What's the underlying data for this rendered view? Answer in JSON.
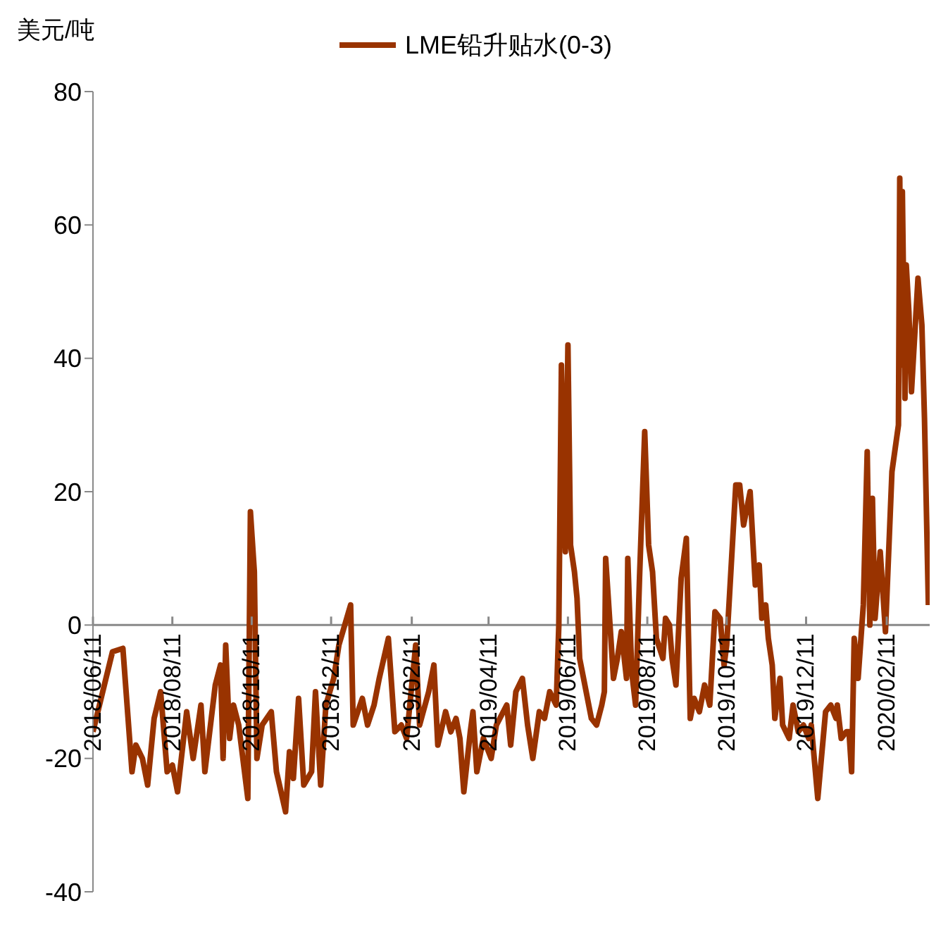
{
  "chart_data": {
    "type": "line",
    "ylabel": "美元/吨",
    "legend": "top",
    "grid": false,
    "marker": "none",
    "line_style": "solid",
    "xlim": [
      "2018-06-11",
      "2020-03-15"
    ],
    "ylim": [
      -40,
      80
    ],
    "yticks": [
      -40,
      -20,
      0,
      20,
      40,
      60,
      80
    ],
    "xticks": [
      {
        "value": "2018-06-11",
        "label": "2018/06/11"
      },
      {
        "value": "2018-08-11",
        "label": "2018/08/11"
      },
      {
        "value": "2018-10-11",
        "label": "2018/10/11"
      },
      {
        "value": "2018-12-11",
        "label": "2018/12/11"
      },
      {
        "value": "2019-02-11",
        "label": "2019/02/11"
      },
      {
        "value": "2019-04-11",
        "label": "2019/04/11"
      },
      {
        "value": "2019-06-11",
        "label": "2019/06/11"
      },
      {
        "value": "2019-08-11",
        "label": "2019/08/11"
      },
      {
        "value": "2019-10-11",
        "label": "2019/10/11"
      },
      {
        "value": "2019-12-11",
        "label": "2019/12/11"
      },
      {
        "value": "2020-02-11",
        "label": "2020/02/11"
      }
    ],
    "x": [
      "2018-06-11",
      "2018-06-21",
      "2018-06-26",
      "2018-07-04",
      "2018-07-11",
      "2018-07-14",
      "2018-07-19",
      "2018-07-23",
      "2018-07-28",
      "2018-08-02",
      "2018-08-07",
      "2018-08-11",
      "2018-08-15",
      "2018-08-22",
      "2018-08-27",
      "2018-09-02",
      "2018-09-05",
      "2018-09-13",
      "2018-09-17",
      "2018-09-19",
      "2018-09-21",
      "2018-09-24",
      "2018-09-27",
      "2018-10-01",
      "2018-10-08",
      "2018-10-10",
      "2018-10-13",
      "2018-10-15",
      "2018-10-19",
      "2018-10-26",
      "2018-10-30",
      "2018-11-06",
      "2018-11-09",
      "2018-11-12",
      "2018-11-16",
      "2018-11-20",
      "2018-11-26",
      "2018-11-29",
      "2018-12-03",
      "2018-12-07",
      "2018-12-13",
      "2018-12-17",
      "2018-12-26",
      "2018-12-28",
      "2019-01-04",
      "2019-01-08",
      "2019-01-13",
      "2019-01-17",
      "2019-01-24",
      "2019-01-29",
      "2019-02-03",
      "2019-02-07",
      "2019-02-14",
      "2019-02-17",
      "2019-02-24",
      "2019-02-28",
      "2019-03-03",
      "2019-03-09",
      "2019-03-13",
      "2019-03-17",
      "2019-03-20",
      "2019-03-23",
      "2019-03-28",
      "2019-03-30",
      "2019-04-02",
      "2019-04-07",
      "2019-04-13",
      "2019-04-17",
      "2019-04-25",
      "2019-04-28",
      "2019-05-02",
      "2019-05-07",
      "2019-05-11",
      "2019-05-15",
      "2019-05-20",
      "2019-05-24",
      "2019-05-28",
      "2019-06-02",
      "2019-06-04",
      "2019-06-06",
      "2019-06-09",
      "2019-06-11",
      "2019-06-13",
      "2019-06-16",
      "2019-06-18",
      "2019-06-20",
      "2019-06-23",
      "2019-06-29",
      "2019-07-03",
      "2019-07-07",
      "2019-07-09",
      "2019-07-10",
      "2019-07-16",
      "2019-07-19",
      "2019-07-22",
      "2019-07-26",
      "2019-07-27",
      "2019-07-30",
      "2019-08-02",
      "2019-08-05",
      "2019-08-09",
      "2019-08-12",
      "2019-08-15",
      "2019-08-18",
      "2019-08-23",
      "2019-08-25",
      "2019-08-28",
      "2019-08-30",
      "2019-09-02",
      "2019-09-06",
      "2019-09-10",
      "2019-09-13",
      "2019-09-16",
      "2019-09-20",
      "2019-09-24",
      "2019-09-28",
      "2019-10-02",
      "2019-10-06",
      "2019-10-09",
      "2019-10-11",
      "2019-10-18",
      "2019-10-21",
      "2019-10-24",
      "2019-10-29",
      "2019-11-02",
      "2019-11-05",
      "2019-11-07",
      "2019-11-10",
      "2019-11-12",
      "2019-11-15",
      "2019-11-17",
      "2019-11-21",
      "2019-11-23",
      "2019-11-28",
      "2019-12-01",
      "2019-12-05",
      "2019-12-09",
      "2019-12-13",
      "2019-12-15",
      "2019-12-20",
      "2019-12-26",
      "2019-12-30",
      "2020-01-03",
      "2020-01-04",
      "2020-01-07",
      "2020-01-11",
      "2020-01-13",
      "2020-01-15",
      "2020-01-17",
      "2020-01-20",
      "2020-01-24",
      "2020-01-27",
      "2020-01-29",
      "2020-01-31",
      "2020-02-02",
      "2020-02-06",
      "2020-02-10",
      "2020-02-15",
      "2020-02-20",
      "2020-02-21",
      "2020-02-22",
      "2020-02-23",
      "2020-02-25",
      "2020-02-26",
      "2020-02-28",
      "2020-03-01",
      "2020-03-06",
      "2020-03-09",
      "2020-03-11",
      "2020-03-14"
    ],
    "series": [
      {
        "name": "LME铅升贴水(0-3)",
        "color": "#993300",
        "values": [
          -16,
          -8,
          -4,
          -3.5,
          -22,
          -18,
          -20,
          -24,
          -14,
          -10,
          -22,
          -21,
          -25,
          -13,
          -20,
          -12,
          -22,
          -9,
          -6,
          -20,
          -3,
          -17,
          -12,
          -15,
          -26,
          17,
          8,
          -20,
          -15,
          -13,
          -22,
          -28,
          -19,
          -23,
          -11,
          -24,
          -22,
          -10,
          -24,
          -12,
          -8,
          -3,
          3,
          -15,
          -11,
          -15,
          -12,
          -8,
          -2,
          -16,
          -15,
          -17,
          -3,
          -15,
          -10,
          -6,
          -18,
          -13,
          -16,
          -14,
          -17,
          -25,
          -16,
          -13,
          -22,
          -17,
          -20,
          -15,
          -12,
          -18,
          -10,
          -8,
          -15,
          -20,
          -13,
          -14,
          -10,
          -12,
          0,
          39,
          11,
          42,
          12,
          8,
          4,
          -5,
          -8,
          -14,
          -15,
          -12,
          -10,
          10,
          -8,
          -5,
          -1,
          -8,
          10,
          -7,
          -12,
          7,
          29,
          12,
          8,
          -2,
          -5,
          1,
          0,
          -5,
          -9,
          7,
          13,
          -14,
          -11,
          -13,
          -9,
          -12,
          2,
          1,
          -6,
          -3,
          21,
          21,
          15,
          20,
          6,
          9,
          1,
          3,
          -2,
          -6,
          -14,
          -8,
          -15,
          -17,
          -12,
          -16,
          -15,
          -17,
          -15,
          -26,
          -13,
          -12,
          -14,
          -12,
          -17,
          -16,
          -16,
          -22,
          -2,
          -8,
          3,
          26,
          0,
          19,
          1,
          11,
          -1,
          23,
          30,
          67,
          39,
          65,
          34,
          54,
          47,
          35,
          52,
          45,
          31,
          3
        ]
      }
    ]
  }
}
